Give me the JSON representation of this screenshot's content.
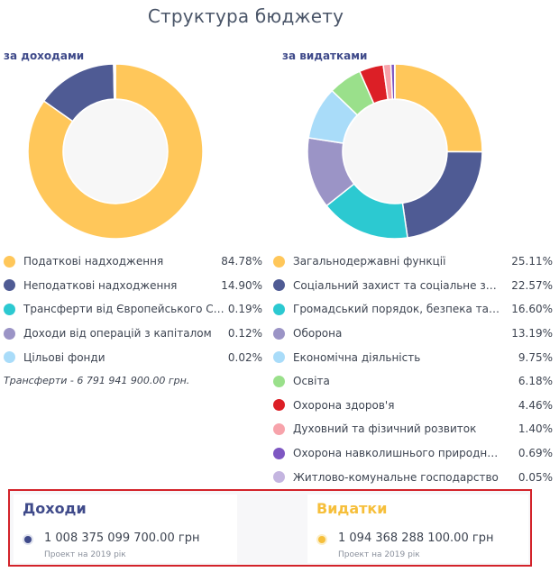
{
  "title": "Структура бюджету",
  "colors": {
    "accent": "#3f4a8a",
    "highlight": "#d3232a",
    "expense_heading": "#f6bf3b"
  },
  "chart_data": [
    {
      "type": "pie",
      "variant": "donut",
      "title": "за доходами",
      "legend_placement": "bottom",
      "categories": [
        "Податкові надходження",
        "Неподаткові надходження",
        "Трансферти від Європейського Союзу",
        "Доходи від операцій з капіталом",
        "Цільові фонди"
      ],
      "value_labels": [
        "84.78%",
        "14.90%",
        "0.19%",
        "0.12%",
        "0.02%"
      ],
      "values": [
        84.78,
        14.9,
        0.19,
        0.12,
        0.02
      ],
      "colors": [
        "#ffc75a",
        "#4f5b94",
        "#2cc9d1",
        "#9b94c6",
        "#a9dcf9"
      ]
    },
    {
      "type": "pie",
      "variant": "donut",
      "title": "за видатками",
      "legend_placement": "bottom",
      "categories": [
        "Загальнодержавні функції",
        "Соціальний захист та соціальне забезпечення",
        "Громадський порядок, безпека та судова влада",
        "Оборона",
        "Економічна діяльність",
        "Освіта",
        "Охорона здоров'я",
        "Духовний та фізичний розвиток",
        "Охорона навколишнього природного середовища",
        "Житлово-комунальне господарство"
      ],
      "value_labels": [
        "25.11%",
        "22.57%",
        "16.60%",
        "13.19%",
        "9.75%",
        "6.18%",
        "4.46%",
        "1.40%",
        "0.69%",
        "0.05%"
      ],
      "values": [
        25.11,
        22.57,
        16.6,
        13.19,
        9.75,
        6.18,
        4.46,
        1.4,
        0.69,
        0.05
      ],
      "colors": [
        "#ffc75a",
        "#4f5b94",
        "#2cc9d1",
        "#9b94c6",
        "#a9dcf9",
        "#9ae08b",
        "#dc1f26",
        "#f7a3ab",
        "#7e57c2",
        "#c4b5e0"
      ]
    }
  ],
  "note": "Трансферти - 6 791 941 900.00 грн.",
  "summary": {
    "income": {
      "heading": "Доходи",
      "amount": "1 008 375 099 700.00 грн",
      "sub": "Проект на 2019 рік"
    },
    "expense": {
      "heading": "Видатки",
      "amount": "1 094 368 288 100.00 грн",
      "sub": "Проект на 2019 рік"
    }
  }
}
